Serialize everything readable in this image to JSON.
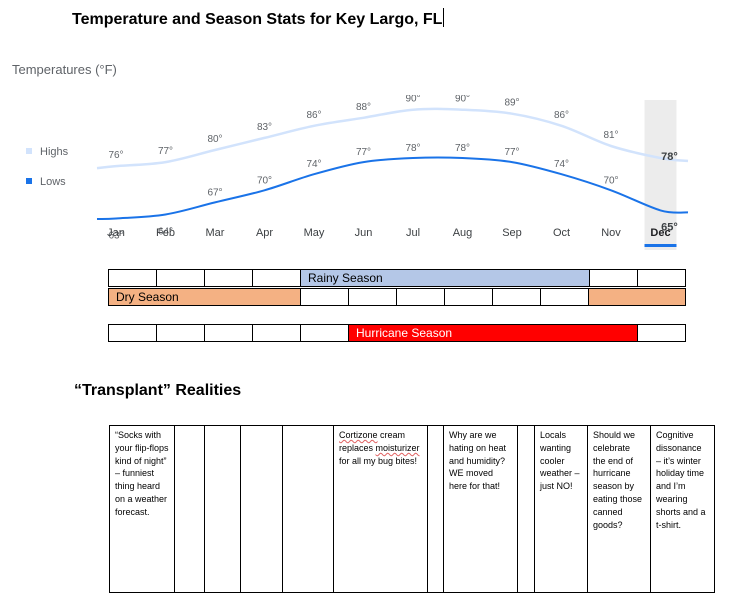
{
  "document": {
    "title": "Temperature and Season Stats for Key Largo, FL",
    "section_title": "“Transplant” Realities"
  },
  "chart_data": {
    "type": "line",
    "title": "Temperatures (°F)",
    "categories": [
      "Jan",
      "Feb",
      "Mar",
      "Apr",
      "May",
      "Jun",
      "Jul",
      "Aug",
      "Sep",
      "Oct",
      "Nov",
      "Dec"
    ],
    "selected": "Dec",
    "series": [
      {
        "name": "Highs",
        "color": "#d2e3fc",
        "values": [
          76,
          77,
          80,
          83,
          86,
          88,
          90,
          90,
          89,
          86,
          81,
          78
        ],
        "labels": [
          "76°",
          "77°",
          "80°",
          "83°",
          "86°",
          "88°",
          "90°",
          "90°",
          "89°",
          "86°",
          "81°",
          "78°"
        ]
      },
      {
        "name": "Lows",
        "color": "#1a73e8",
        "values": [
          63,
          64,
          67,
          70,
          74,
          77,
          78,
          78,
          77,
          74,
          70,
          65
        ],
        "labels": [
          "63°",
          "64°",
          "67°",
          "70°",
          "74°",
          "77°",
          "78°",
          "78°",
          "77°",
          "74°",
          "70°",
          "65°"
        ]
      }
    ]
  },
  "seasons": {
    "rainy_label": "Rainy Season",
    "dry_label": "Dry Season",
    "hurricane_label": "Hurricane Season",
    "colors": {
      "rainy": "#b4c7e7",
      "dry": "#f4b183",
      "hurricane": "#ff0000"
    }
  },
  "realities": {
    "c1": "“Socks with your flip-flops kind of night” – funniest thing heard on a weather forecast.",
    "c6_word1": "Cortizone",
    "c6_mid": " cream replaces ",
    "c6_word2": "moisturizer",
    "c6_end": " for all my bug bites!",
    "c8": "Why are we hating on heat and humidity? WE moved here for that!",
    "c10": "Locals wanting cooler weather – just NO!",
    "c11": "Should we celebrate the end of hurricane season by eating those canned goods?",
    "c12": "Cognitive dissonance – it’s winter holiday time and I’m wearing shorts and a t-shirt."
  }
}
